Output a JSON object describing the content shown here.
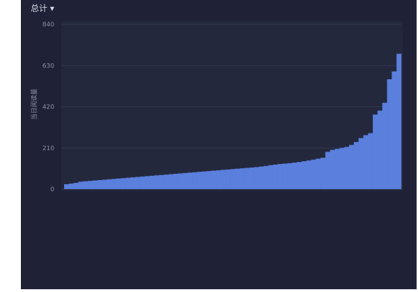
{
  "menu": {
    "label": "总计"
  },
  "chart_data": {
    "type": "bar",
    "y_label": "当日阅读量",
    "categories": [
      null,
      null,
      null,
      null,
      null,
      null,
      null,
      null,
      null,
      null,
      null,
      null,
      null,
      null,
      null,
      null,
      null,
      null,
      null,
      null,
      null,
      null,
      null,
      null,
      null,
      null,
      null,
      null,
      null,
      null,
      null,
      null,
      null,
      null,
      null,
      null,
      null,
      null,
      null,
      null,
      null,
      null,
      null,
      null,
      null,
      null,
      null,
      null,
      null,
      null,
      null,
      null,
      null,
      null,
      null,
      null,
      null,
      null,
      null,
      null,
      null,
      null,
      null,
      null,
      null,
      null,
      null,
      null,
      null,
      null,
      null
    ],
    "values": [
      25,
      28,
      32,
      38,
      40,
      42,
      44,
      46,
      48,
      50,
      52,
      54,
      56,
      58,
      60,
      62,
      64,
      66,
      68,
      70,
      72,
      74,
      76,
      78,
      80,
      82,
      84,
      86,
      88,
      90,
      92,
      94,
      96,
      98,
      100,
      102,
      104,
      106,
      108,
      110,
      112,
      115,
      118,
      122,
      125,
      128,
      130,
      132,
      135,
      138,
      142,
      146,
      150,
      155,
      160,
      190,
      200,
      205,
      210,
      215,
      225,
      240,
      260,
      275,
      285,
      380,
      400,
      440,
      560,
      600,
      690
    ],
    "color": "#5a7fdc",
    "ylim": [
      0,
      840
    ],
    "yticks": [
      0,
      210,
      420,
      630,
      840
    ],
    "grid": true
  }
}
